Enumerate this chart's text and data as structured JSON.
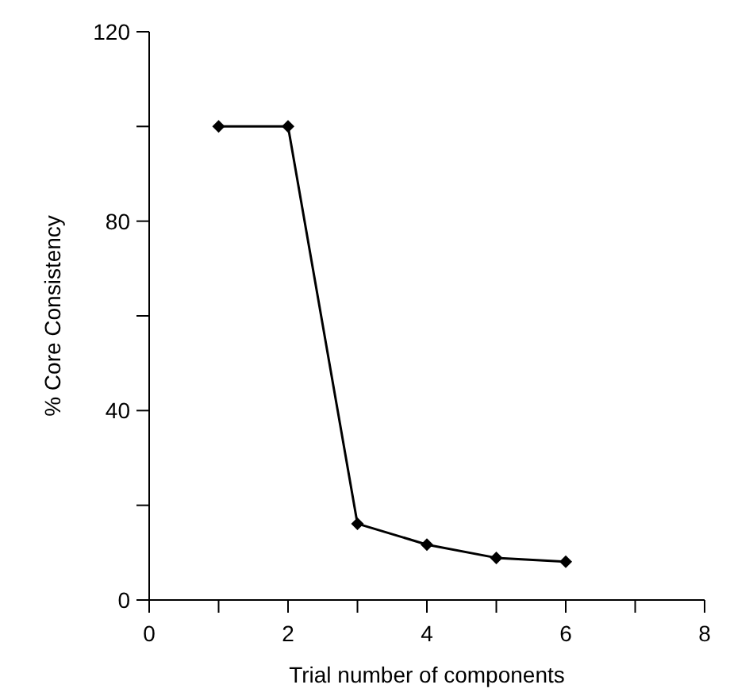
{
  "chart_data": {
    "type": "line",
    "xlabel": "Trial number of components",
    "ylabel": "% Core Consistency",
    "x": [
      1,
      2,
      3,
      4,
      5,
      6
    ],
    "series": [
      {
        "color": "#000000",
        "values": [
          100,
          100,
          16.1,
          11.7,
          8.9,
          8.1
        ]
      }
    ],
    "xlim": [
      0,
      8
    ],
    "xticks": [
      0,
      {
        "value": 1,
        "label": null
      },
      2,
      {
        "value": 3,
        "label": null
      },
      4,
      {
        "value": 5,
        "label": null
      },
      6,
      {
        "value": 7,
        "label": null
      },
      8
    ],
    "ylim": [
      0,
      120
    ],
    "yticks": [
      0,
      {
        "value": 20,
        "label": null
      },
      40,
      {
        "value": 60,
        "label": null
      },
      80,
      {
        "value": 100,
        "label": null
      },
      120
    ],
    "marker": "diamond",
    "line_style": "solid"
  }
}
